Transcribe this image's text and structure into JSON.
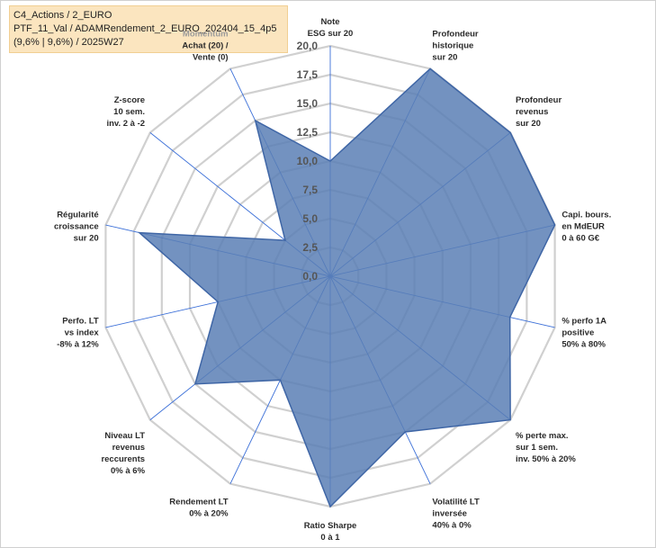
{
  "info": {
    "line1": "C4_Actions / 2_EURO",
    "line2": "PTF_11_Val / ADAMRendement_2_EURO_202404_15_4p5",
    "line3": "(9,6% | 9,6%) / 2025W27"
  },
  "colors": {
    "fill": "#5b7fb5",
    "stroke": "#3f66a6",
    "grid": "#d0d0d0",
    "spoke": "#3b6fd8"
  },
  "chart_data": {
    "type": "radar",
    "rmin": 0,
    "rmax": 20,
    "ticks": [
      {
        "value": 0,
        "label": "0,0"
      },
      {
        "value": 2.5,
        "label": "2,5"
      },
      {
        "value": 5,
        "label": "5,0"
      },
      {
        "value": 7.5,
        "label": "7,5"
      },
      {
        "value": 10,
        "label": "10,0"
      },
      {
        "value": 12.5,
        "label": "12,5"
      },
      {
        "value": 15,
        "label": "15,0"
      },
      {
        "value": 17.5,
        "label": "17,5"
      },
      {
        "value": 20,
        "label": "20,0"
      }
    ],
    "axes": [
      {
        "lines": [
          "Note",
          "ESG sur 20"
        ],
        "value": 10
      },
      {
        "lines": [
          "Profondeur",
          "historique",
          "sur 20"
        ],
        "value": 20
      },
      {
        "lines": [
          "Profondeur",
          "revenus",
          "sur 20"
        ],
        "value": 20
      },
      {
        "lines": [
          "Capi. bours.",
          "en MdEUR",
          "0 à 60 G€"
        ],
        "value": 20
      },
      {
        "lines": [
          "% perfo 1A",
          "positive",
          "50% à 80%"
        ],
        "value": 16
      },
      {
        "lines": [
          "% perte max.",
          "sur 1 sem.",
          "inv. 50% à 20%"
        ],
        "value": 20
      },
      {
        "lines": [
          "Volatilité LT",
          "inversée",
          "40% à 0%"
        ],
        "value": 15
      },
      {
        "lines": [
          "Ratio Sharpe",
          "0 à 1"
        ],
        "value": 20
      },
      {
        "lines": [
          "Rendement LT",
          "0% à 20%"
        ],
        "value": 10
      },
      {
        "lines": [
          "Niveau LT",
          "revenus",
          "reccurents",
          "0% à 6%"
        ],
        "value": 15
      },
      {
        "lines": [
          "Perfo. LT",
          "vs index",
          "-8% à 12%"
        ],
        "value": 10
      },
      {
        "lines": [
          "Régularité",
          "croissance",
          "sur 20"
        ],
        "value": 17
      },
      {
        "lines": [
          "Z-score",
          "10 sem.",
          "inv. 2 à -2"
        ],
        "value": 5
      },
      {
        "lines": [
          "Momentum",
          "Achat (20) /",
          "Vente (0)"
        ],
        "value": 15
      }
    ]
  }
}
